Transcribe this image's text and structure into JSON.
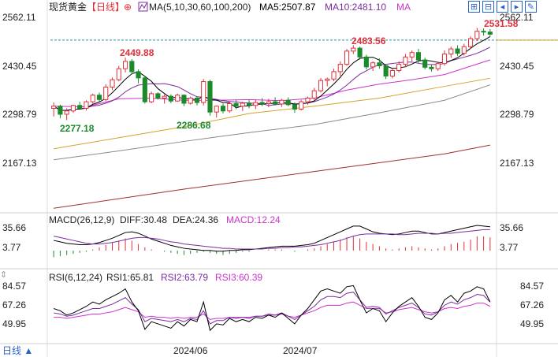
{
  "header": {
    "instrument": "现货黄金",
    "period": "【日线】",
    "indicator_prefix": "MA(5,10,30,60,100,200)",
    "ma5": "MA5:2507.87",
    "ma10": "MA10:2481.10",
    "ma_more": "MA"
  },
  "toolbar": {
    "icons": [
      "expand-icon",
      "shrink-icon",
      "left-icon",
      "right-icon",
      "settings-icon"
    ]
  },
  "price_axis": {
    "left": [
      "2562.11",
      "2430.45",
      "2298.79",
      "2167.13"
    ],
    "right": [
      "2562.11",
      "2430.45",
      "2298.79",
      "2167.13"
    ]
  },
  "annotations": {
    "high1": "2449.88",
    "low1": "2277.18",
    "low2": "2286.68",
    "high2": "2483.56",
    "last_high": "2531.58"
  },
  "macd": {
    "title": "MACD(26,12,9)",
    "diff": "DIFF:30.48",
    "dea": "DEA:24.36",
    "macd": "MACD:12.24",
    "axis_left": [
      "35.66",
      "3.77"
    ],
    "axis_right": [
      "35.66",
      "3.77"
    ]
  },
  "rsi": {
    "title": "RSI(6,12,24)",
    "rsi1": "RSI1:65.81",
    "rsi2": "RSI2:63.79",
    "rsi3": "RSI3:60.39",
    "axis_left": [
      "84.57",
      "67.26",
      "49.95"
    ],
    "axis_right": [
      "84.57",
      "67.26",
      "49.95"
    ]
  },
  "dates": [
    "2024/06",
    "2024/07"
  ],
  "period_button": "日线 ▲",
  "colors": {
    "up": "#e0303a",
    "down": "#1a8a2a",
    "ma5": "#000000",
    "ma10": "#7a2ca0",
    "ma30": "#d4a22a",
    "ma60": "#cc33cc",
    "ma100": "#8a8a8a",
    "ma200": "#a03030",
    "dash": "#2b8aa0",
    "accent": "#2b62c5"
  },
  "chart_data": {
    "type": "candlestick",
    "ylim": [
      2150,
      2575
    ],
    "candles": [
      [
        2312,
        2328,
        2290,
        2318
      ],
      [
        2318,
        2322,
        2285,
        2296
      ],
      [
        2296,
        2312,
        2280,
        2305
      ],
      [
        2305,
        2322,
        2300,
        2320
      ],
      [
        2320,
        2330,
        2310,
        2312
      ],
      [
        2312,
        2334,
        2306,
        2330
      ],
      [
        2330,
        2352,
        2325,
        2348
      ],
      [
        2348,
        2355,
        2330,
        2336
      ],
      [
        2336,
        2378,
        2332,
        2370
      ],
      [
        2370,
        2396,
        2362,
        2390
      ],
      [
        2390,
        2428,
        2386,
        2420
      ],
      [
        2420,
        2450,
        2410,
        2440
      ],
      [
        2440,
        2446,
        2405,
        2412
      ],
      [
        2412,
        2418,
        2380,
        2395
      ],
      [
        2395,
        2400,
        2325,
        2330
      ],
      [
        2330,
        2358,
        2326,
        2352
      ],
      [
        2352,
        2356,
        2336,
        2340
      ],
      [
        2340,
        2350,
        2325,
        2345
      ],
      [
        2345,
        2350,
        2326,
        2332
      ],
      [
        2332,
        2352,
        2330,
        2348
      ],
      [
        2348,
        2350,
        2318,
        2326
      ],
      [
        2326,
        2344,
        2322,
        2340
      ],
      [
        2340,
        2345,
        2320,
        2328
      ],
      [
        2328,
        2392,
        2320,
        2385
      ],
      [
        2385,
        2390,
        2292,
        2302
      ],
      [
        2302,
        2320,
        2287,
        2318
      ],
      [
        2318,
        2325,
        2298,
        2305
      ],
      [
        2305,
        2330,
        2300,
        2325
      ],
      [
        2325,
        2334,
        2310,
        2318
      ],
      [
        2318,
        2330,
        2305,
        2326
      ],
      [
        2326,
        2336,
        2312,
        2320
      ],
      [
        2320,
        2335,
        2310,
        2328
      ],
      [
        2328,
        2340,
        2318,
        2325
      ],
      [
        2325,
        2338,
        2315,
        2330
      ],
      [
        2330,
        2342,
        2320,
        2324
      ],
      [
        2324,
        2338,
        2316,
        2334
      ],
      [
        2334,
        2342,
        2318,
        2322
      ],
      [
        2322,
        2328,
        2300,
        2310
      ],
      [
        2310,
        2335,
        2306,
        2330
      ],
      [
        2330,
        2344,
        2322,
        2340
      ],
      [
        2340,
        2368,
        2335,
        2360
      ],
      [
        2360,
        2395,
        2355,
        2388
      ],
      [
        2388,
        2396,
        2372,
        2392
      ],
      [
        2392,
        2420,
        2386,
        2412
      ],
      [
        2412,
        2440,
        2400,
        2432
      ],
      [
        2432,
        2474,
        2428,
        2468
      ],
      [
        2468,
        2484,
        2460,
        2476
      ],
      [
        2476,
        2480,
        2445,
        2452
      ],
      [
        2452,
        2458,
        2418,
        2425
      ],
      [
        2425,
        2440,
        2414,
        2436
      ],
      [
        2436,
        2448,
        2420,
        2428
      ],
      [
        2428,
        2432,
        2392,
        2400
      ],
      [
        2400,
        2420,
        2394,
        2415
      ],
      [
        2415,
        2440,
        2410,
        2432
      ],
      [
        2432,
        2460,
        2424,
        2452
      ],
      [
        2452,
        2470,
        2440,
        2464
      ],
      [
        2464,
        2474,
        2436,
        2444
      ],
      [
        2444,
        2450,
        2418,
        2424
      ],
      [
        2424,
        2430,
        2412,
        2420
      ],
      [
        2420,
        2440,
        2414,
        2434
      ],
      [
        2434,
        2470,
        2428,
        2460
      ],
      [
        2460,
        2480,
        2450,
        2474
      ],
      [
        2474,
        2484,
        2455,
        2462
      ],
      [
        2462,
        2488,
        2456,
        2480
      ],
      [
        2480,
        2508,
        2474,
        2502
      ],
      [
        2502,
        2531,
        2496,
        2522
      ],
      [
        2522,
        2530,
        2510,
        2520
      ],
      [
        2520,
        2528,
        2508,
        2514
      ]
    ],
    "ma_other": {
      "ma30": [
        [
          0,
          2202
        ],
        [
          10,
          2232
        ],
        [
          20,
          2262
        ],
        [
          30,
          2298
        ],
        [
          40,
          2318
        ],
        [
          50,
          2340
        ],
        [
          60,
          2372
        ],
        [
          67,
          2394
        ]
      ],
      "ma60": [
        [
          0,
          2318
        ],
        [
          5,
          2316
        ],
        [
          10,
          2338
        ],
        [
          15,
          2340
        ],
        [
          20,
          2334
        ],
        [
          25,
          2334
        ],
        [
          30,
          2336
        ],
        [
          35,
          2333
        ],
        [
          40,
          2340
        ],
        [
          45,
          2362
        ],
        [
          50,
          2378
        ],
        [
          55,
          2390
        ],
        [
          60,
          2404
        ],
        [
          67,
          2444
        ]
      ],
      "ma100": [
        [
          0,
          2172
        ],
        [
          10,
          2196
        ],
        [
          20,
          2222
        ],
        [
          30,
          2246
        ],
        [
          40,
          2268
        ],
        [
          50,
          2300
        ],
        [
          60,
          2334
        ],
        [
          67,
          2376
        ]
      ],
      "ma200": [
        [
          0,
          2040
        ],
        [
          10,
          2066
        ],
        [
          20,
          2092
        ],
        [
          30,
          2116
        ],
        [
          40,
          2140
        ],
        [
          50,
          2164
        ],
        [
          60,
          2188
        ],
        [
          67,
          2212
        ]
      ]
    },
    "hline": 2498,
    "macd_hist": [
      -6,
      -5,
      -4,
      -3,
      -2,
      -1,
      1,
      3,
      5,
      7,
      9,
      11,
      9,
      6,
      3,
      1,
      0,
      -1,
      -2,
      -3,
      -4,
      -3,
      -2,
      -1,
      -2,
      -3,
      -4,
      -3,
      -2,
      -1,
      -1,
      0,
      0,
      1,
      1,
      1,
      0,
      -1,
      0,
      1,
      2,
      4,
      6,
      8,
      10,
      12,
      13,
      11,
      8,
      6,
      4,
      2,
      1,
      2,
      3,
      4,
      3,
      2,
      1,
      2,
      4,
      6,
      7,
      8,
      10,
      13,
      13,
      12
    ],
    "diff": [
      18,
      16,
      14,
      13,
      12,
      12,
      13,
      15,
      18,
      21,
      25,
      29,
      30,
      28,
      24,
      20,
      17,
      14,
      11,
      9,
      7,
      6,
      5,
      4,
      4,
      3,
      3,
      4,
      4,
      5,
      5,
      6,
      7,
      8,
      9,
      10,
      10,
      10,
      11,
      12,
      14,
      18,
      22,
      26,
      30,
      34,
      38,
      38,
      34,
      30,
      28,
      27,
      26,
      27,
      29,
      31,
      31,
      29,
      27,
      27,
      29,
      31,
      33,
      35,
      37,
      39,
      38,
      37
    ],
    "dea": [
      24,
      22,
      20,
      18,
      16,
      14,
      13,
      13,
      14,
      15,
      17,
      19,
      21,
      22,
      22,
      21,
      20,
      18,
      16,
      15,
      13,
      12,
      11,
      10,
      9,
      8,
      7,
      7,
      6,
      6,
      6,
      6,
      6,
      7,
      7,
      8,
      8,
      9,
      9,
      10,
      11,
      12,
      14,
      16,
      18,
      21,
      24,
      26,
      27,
      27,
      27,
      27,
      27,
      26,
      26,
      27,
      28,
      28,
      28,
      27,
      28,
      28,
      29,
      30,
      31,
      32,
      33,
      33
    ],
    "rsi1": [
      64,
      62,
      58,
      60,
      63,
      66,
      70,
      68,
      72,
      75,
      78,
      82,
      70,
      62,
      45,
      52,
      50,
      48,
      46,
      52,
      48,
      54,
      52,
      70,
      44,
      50,
      49,
      55,
      52,
      54,
      52,
      56,
      55,
      58,
      56,
      60,
      55,
      50,
      58,
      64,
      72,
      80,
      82,
      80,
      78,
      84,
      85,
      72,
      60,
      64,
      62,
      52,
      60,
      66,
      70,
      74,
      66,
      56,
      54,
      60,
      72,
      76,
      70,
      78,
      80,
      84,
      82,
      70
    ],
    "rsi2": [
      60,
      59,
      57,
      58,
      60,
      62,
      64,
      64,
      66,
      68,
      71,
      74,
      68,
      63,
      52,
      55,
      54,
      53,
      52,
      54,
      52,
      55,
      54,
      62,
      50,
      53,
      53,
      56,
      55,
      56,
      55,
      57,
      57,
      59,
      58,
      60,
      57,
      54,
      58,
      62,
      66,
      72,
      75,
      75,
      74,
      78,
      79,
      72,
      65,
      66,
      65,
      59,
      62,
      65,
      67,
      69,
      65,
      59,
      58,
      61,
      67,
      70,
      68,
      72,
      74,
      77,
      76,
      70
    ],
    "rsi3": [
      56,
      56,
      55,
      56,
      57,
      58,
      59,
      59,
      60,
      61,
      63,
      65,
      63,
      61,
      56,
      57,
      56,
      56,
      55,
      56,
      55,
      56,
      56,
      59,
      54,
      55,
      55,
      56,
      56,
      56,
      56,
      57,
      57,
      58,
      58,
      59,
      57,
      56,
      58,
      60,
      62,
      65,
      67,
      67,
      67,
      69,
      70,
      67,
      64,
      64,
      64,
      60,
      61,
      63,
      64,
      65,
      63,
      61,
      60,
      61,
      64,
      65,
      64,
      66,
      67,
      69,
      69,
      66
    ]
  }
}
